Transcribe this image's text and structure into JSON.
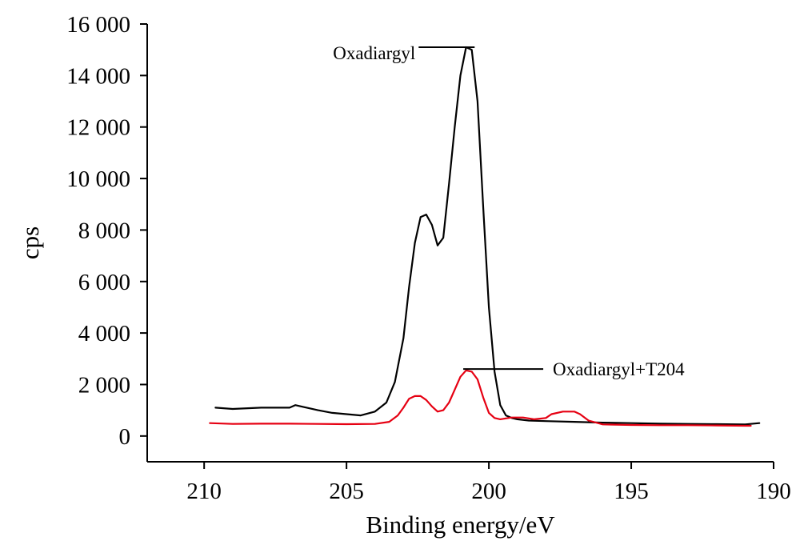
{
  "chart_data": {
    "type": "line",
    "xlabel": "Binding energy/eV",
    "ylabel": "cps",
    "xlim": [
      212,
      190
    ],
    "ylim": [
      -1000,
      16000
    ],
    "x_reversed": true,
    "xticks": [
      210,
      205,
      200,
      195,
      190
    ],
    "xtick_labels": [
      "210",
      "205",
      "200",
      "195",
      "190"
    ],
    "yticks": [
      0,
      2000,
      4000,
      6000,
      8000,
      10000,
      12000,
      14000,
      16000
    ],
    "ytick_labels": [
      "0",
      "2 000",
      "4 000",
      "6 000",
      "8 000",
      "10 000",
      "12 000",
      "14 000",
      "16 000"
    ],
    "grid": false,
    "legend": "none",
    "series": [
      {
        "name": "Oxadiargyl",
        "color": "#000000",
        "x": [
          209.6,
          209.0,
          208.0,
          207.0,
          206.8,
          206.0,
          205.5,
          205.0,
          204.5,
          204.0,
          203.6,
          203.3,
          203.0,
          202.8,
          202.6,
          202.4,
          202.2,
          202.0,
          201.8,
          201.6,
          201.4,
          201.2,
          201.0,
          200.8,
          200.6,
          200.4,
          200.2,
          200.0,
          199.8,
          199.6,
          199.4,
          199.2,
          199.0,
          198.6,
          198.0,
          197.0,
          196.0,
          195.0,
          194.0,
          193.0,
          192.0,
          191.0,
          190.5
        ],
        "values": [
          1100,
          1050,
          1100,
          1100,
          1200,
          1000,
          900,
          850,
          800,
          950,
          1300,
          2100,
          3800,
          5800,
          7500,
          8500,
          8600,
          8200,
          7400,
          7700,
          9800,
          12000,
          14000,
          15100,
          15000,
          13000,
          8900,
          5000,
          2500,
          1200,
          800,
          700,
          650,
          600,
          580,
          550,
          520,
          500,
          480,
          470,
          460,
          450,
          500
        ]
      },
      {
        "name": "Oxadiargyl+T204",
        "color": "#e60012",
        "x": [
          209.8,
          209.0,
          208.0,
          207.0,
          206.0,
          205.0,
          204.0,
          203.5,
          203.2,
          203.0,
          202.8,
          202.6,
          202.4,
          202.2,
          202.0,
          201.8,
          201.6,
          201.4,
          201.2,
          201.0,
          200.8,
          200.6,
          200.4,
          200.2,
          200.0,
          199.8,
          199.6,
          199.2,
          198.8,
          198.4,
          198.0,
          197.8,
          197.4,
          197.0,
          196.8,
          196.5,
          196.0,
          195.0,
          194.0,
          193.0,
          192.0,
          191.0,
          190.8
        ],
        "values": [
          500,
          470,
          480,
          480,
          470,
          460,
          470,
          550,
          800,
          1100,
          1450,
          1550,
          1550,
          1400,
          1150,
          950,
          1000,
          1300,
          1800,
          2300,
          2550,
          2500,
          2200,
          1500,
          900,
          700,
          650,
          720,
          720,
          650,
          700,
          850,
          950,
          950,
          850,
          600,
          450,
          430,
          420,
          420,
          410,
          400,
          400
        ]
      }
    ],
    "annotations": [
      {
        "text": "Oxadiargyl",
        "x": 200.5,
        "y": 15100
      },
      {
        "text": "Oxadiargyl+T204",
        "x": 200.9,
        "y": 2600
      }
    ]
  }
}
